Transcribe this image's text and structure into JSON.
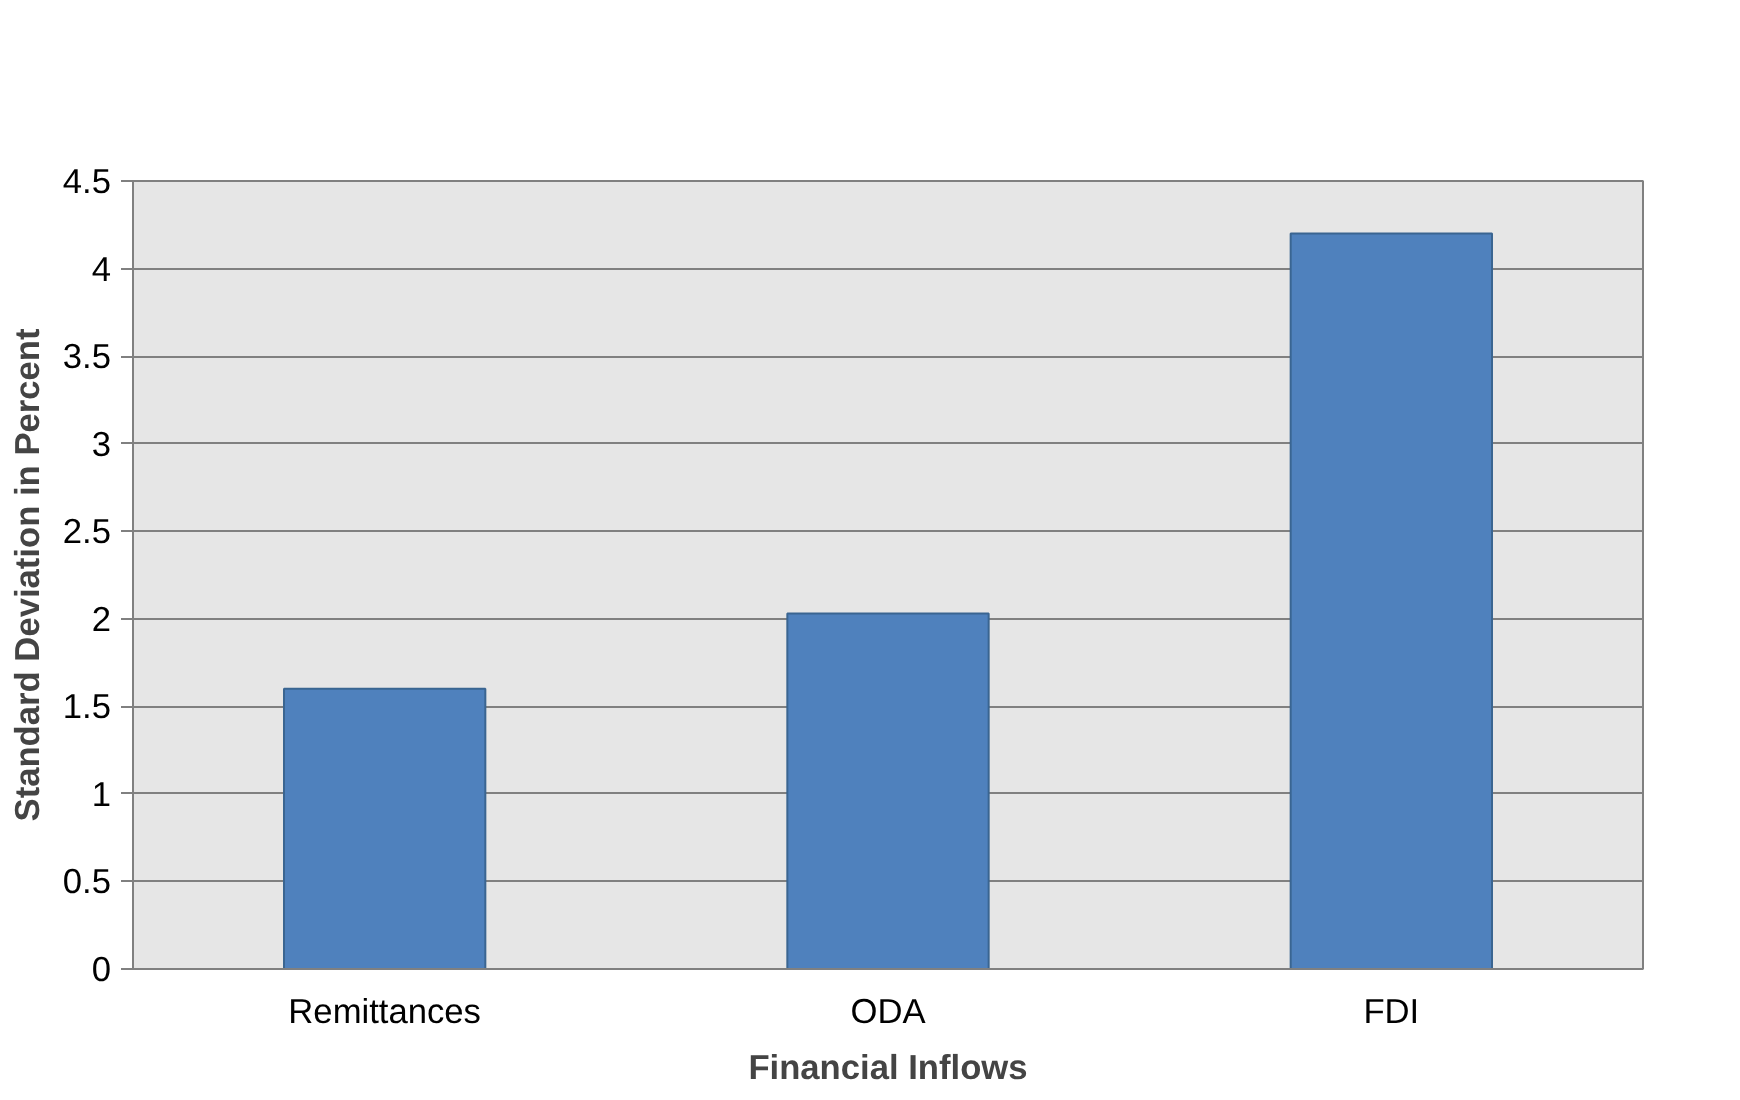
{
  "chart_data": {
    "type": "bar",
    "xlabel": "Financial Inflows",
    "ylabel": "Standard Deviation in Percent",
    "categories": [
      "Remittances",
      "ODA",
      "FDI"
    ],
    "values": [
      1.6,
      2.03,
      4.2
    ],
    "color": "#4f81bd",
    "ylim": [
      0,
      4.5
    ],
    "yticks": [
      0,
      0.5,
      1,
      1.5,
      2,
      2.5,
      3,
      3.5,
      4,
      4.5
    ],
    "grid": "y"
  }
}
